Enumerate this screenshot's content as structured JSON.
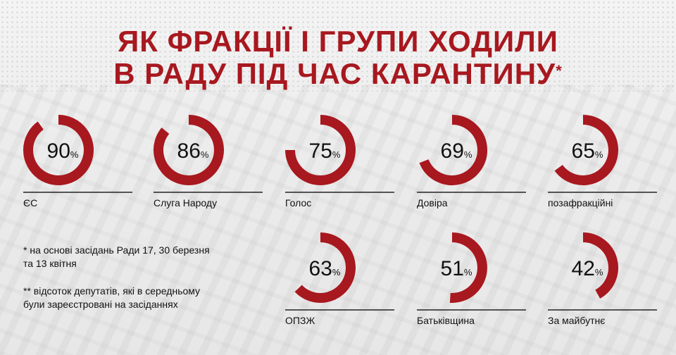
{
  "title": {
    "line1": "ЯК ФРАКЦІЇ І ГРУПИ ХОДИЛИ",
    "line2": "В РАДУ ПІД ЧАС КАРАНТИНУ",
    "mark": "*"
  },
  "notes": {
    "n1a": "* на основі засідань Ради 17, 30 березня",
    "n1b": "та 13 квітня",
    "n2a": "** відсоток депутатів, які в середньому",
    "n2b": "були зареєстровані на засіданнях"
  },
  "colors": {
    "accent": "#a8181f",
    "text": "#111111"
  },
  "chart_data": {
    "type": "donut",
    "unit": "%",
    "categories": [
      "ЄС",
      "Слуга Народу",
      "Голос",
      "Довіра",
      "позафракційні",
      "ОПЗЖ",
      "Батьківщина",
      "За майбутнє"
    ],
    "values": [
      90,
      86,
      75,
      69,
      65,
      63,
      51,
      42
    ]
  }
}
